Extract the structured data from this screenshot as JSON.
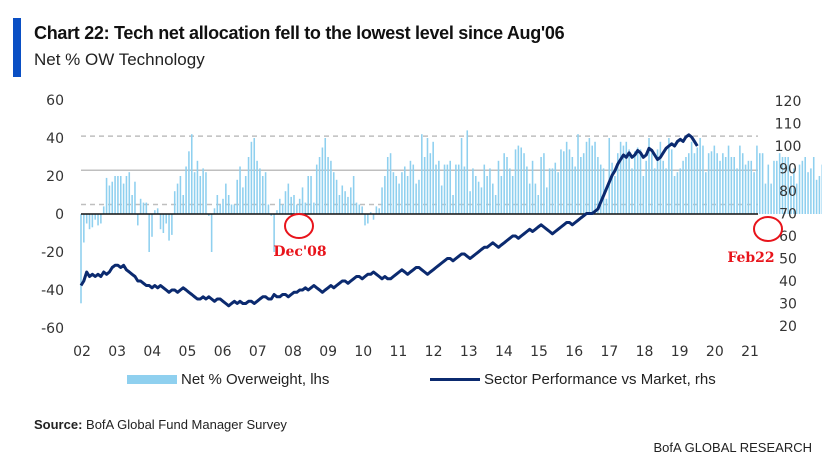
{
  "header": {
    "title": "Chart 22: Tech net allocation fell to the lowest level since Aug'06",
    "subtitle": "Net % OW Technology"
  },
  "colors": {
    "accent": "#0a4fc4",
    "bars": "#8fd0ef",
    "line": "#0b2a6f",
    "annotation": "#e8141b",
    "gridline": "#bfbfbf"
  },
  "chart_data": {
    "type": "bar",
    "title": "Chart 22: Tech net allocation fell to the lowest level since Aug'06",
    "subtitle": "Net % OW Technology",
    "xlabel": "",
    "ylabel": "Net % OW",
    "y2label": "Sector performance vs market",
    "x_ticks": [
      "02",
      "03",
      "04",
      "05",
      "06",
      "07",
      "08",
      "09",
      "10",
      "11",
      "12",
      "13",
      "14",
      "15",
      "16",
      "17",
      "18",
      "19",
      "20",
      "21"
    ],
    "x_range": [
      2002.0,
      2022.15
    ],
    "ylim": [
      -60,
      60
    ],
    "y_ticks": [
      60,
      40,
      20,
      0,
      -20,
      -40,
      -60
    ],
    "y2lim": [
      20,
      120
    ],
    "y2_ticks": [
      120,
      110,
      100,
      90,
      80,
      70,
      60,
      50,
      40,
      30,
      20
    ],
    "reference_lines": [
      {
        "value": 41,
        "style": "dashed"
      },
      {
        "value": 23,
        "style": "solid"
      },
      {
        "value": 5,
        "style": "dashed"
      },
      {
        "value": 0,
        "style": "zero"
      }
    ],
    "legend": {
      "position": "bottom",
      "entries": [
        "Net % Overweight, lhs",
        "Sector Performance vs Market, rhs"
      ]
    },
    "annotations": [
      {
        "text": "Dec'08",
        "x": 2008.95,
        "y": -5
      },
      {
        "text": "Feb22",
        "x": 2022.1,
        "y": -10
      }
    ],
    "series": [
      {
        "name": "Net % Overweight, lhs",
        "type": "bar",
        "axis": "left",
        "start": 2002.0,
        "step": 0.0833,
        "values": [
          -47,
          -15,
          -5,
          -8,
          -7,
          -3,
          -6,
          -5,
          4,
          19,
          15,
          17,
          20,
          20,
          20,
          16,
          20,
          22,
          10,
          17,
          -6,
          8,
          6,
          6,
          -20,
          -12,
          2,
          3,
          -8,
          -10,
          -5,
          -14,
          -11,
          12,
          16,
          20,
          10,
          25,
          33,
          42,
          22,
          28,
          20,
          24,
          22,
          -1,
          -20,
          3,
          10,
          5,
          8,
          16,
          10,
          5,
          5,
          18,
          25,
          14,
          20,
          30,
          38,
          40,
          28,
          24,
          20,
          22,
          5,
          -1,
          -20,
          2,
          8,
          5,
          12,
          16,
          9,
          10,
          5,
          8,
          14,
          6,
          20,
          20,
          6,
          26,
          30,
          35,
          40,
          30,
          28,
          22,
          18,
          10,
          15,
          12,
          9,
          14,
          20,
          6,
          5,
          4,
          -6,
          -5,
          1,
          -3,
          4,
          3,
          14,
          20,
          30,
          32,
          22,
          20,
          16,
          22,
          25,
          20,
          28,
          26,
          16,
          18,
          42,
          30,
          40,
          32,
          38,
          26,
          28,
          15,
          26,
          26,
          28,
          10,
          26,
          26,
          40,
          25,
          44,
          12,
          24,
          20,
          17,
          14,
          26,
          20,
          24,
          16,
          10,
          28,
          20,
          32,
          30,
          24,
          20,
          34,
          36,
          35,
          32,
          25,
          16,
          28,
          16,
          10,
          30,
          32,
          14,
          24,
          24,
          27,
          22,
          34,
          33,
          38,
          34,
          30,
          25,
          42,
          30,
          32,
          38,
          40,
          36,
          38,
          30,
          26,
          24,
          8,
          40,
          27,
          20,
          32,
          38,
          36,
          38,
          34,
          24,
          33,
          35,
          34,
          20,
          28,
          40,
          32,
          24,
          34,
          38,
          28,
          24,
          40,
          34,
          20,
          22,
          24,
          28,
          30,
          32,
          38,
          32,
          35,
          40,
          36,
          22,
          32,
          33,
          36,
          32,
          28,
          32,
          30,
          36,
          30,
          30,
          24,
          36,
          32,
          26,
          28,
          28,
          22,
          36,
          32,
          32,
          16,
          26,
          16,
          28,
          28,
          32,
          30,
          30,
          30,
          20,
          24,
          16,
          26,
          28,
          30,
          22,
          24,
          30,
          18,
          20,
          26,
          20,
          28,
          32,
          34,
          40,
          42,
          38,
          42,
          38,
          36,
          30,
          24,
          18,
          12,
          20,
          22,
          26,
          24,
          30,
          14,
          18,
          22,
          28,
          22,
          20,
          -10
        ]
      },
      {
        "name": "Sector Performance vs Market, rhs",
        "type": "line",
        "axis": "right",
        "start": 2002.0,
        "step": 0.0833,
        "values": [
          38,
          40,
          44,
          42,
          43,
          42,
          43,
          42,
          44,
          43,
          44,
          46,
          47,
          47,
          46,
          47,
          45,
          44,
          43,
          42,
          40,
          40,
          39,
          38,
          38,
          37,
          38,
          37,
          38,
          37,
          36,
          35,
          36,
          36,
          35,
          36,
          37,
          36,
          35,
          34,
          33,
          32,
          32,
          33,
          32,
          33,
          32,
          31,
          32,
          32,
          31,
          30,
          29,
          30,
          31,
          30,
          31,
          30,
          30,
          31,
          31,
          30,
          31,
          32,
          33,
          33,
          32,
          32,
          34,
          33,
          33,
          34,
          34,
          33,
          34,
          35,
          35,
          36,
          36,
          37,
          36,
          37,
          38,
          37,
          36,
          35,
          36,
          37,
          38,
          37,
          38,
          39,
          40,
          40,
          39,
          40,
          41,
          42,
          42,
          41,
          42,
          43,
          43,
          44,
          43,
          42,
          41,
          42,
          41,
          41,
          42,
          43,
          44,
          45,
          44,
          43,
          44,
          45,
          46,
          46,
          45,
          44,
          43,
          44,
          45,
          46,
          47,
          48,
          49,
          50,
          50,
          49,
          50,
          51,
          52,
          52,
          51,
          50,
          51,
          52,
          53,
          54,
          55,
          55,
          56,
          57,
          56,
          55,
          56,
          57,
          58,
          59,
          60,
          60,
          59,
          60,
          61,
          62,
          63,
          62,
          63,
          64,
          65,
          64,
          63,
          62,
          61,
          62,
          63,
          64,
          65,
          66,
          66,
          65,
          66,
          67,
          68,
          69,
          70,
          70,
          70,
          71,
          72,
          75,
          78,
          81,
          84,
          87,
          89,
          92,
          94,
          96,
          95,
          97,
          95,
          96,
          98,
          97,
          95,
          96,
          99,
          98,
          96,
          94,
          95,
          97,
          99,
          100,
          101,
          100,
          102,
          103,
          102,
          104,
          105,
          104,
          102,
          100
        ]
      }
    ]
  },
  "legend": {
    "bar_label": "Net % Overweight, lhs",
    "line_label": "Sector Performance vs Market, rhs"
  },
  "footer": {
    "source_label": "Source:",
    "source_text": "BofA Global Fund Manager Survey",
    "brand": "BofA GLOBAL RESEARCH"
  }
}
